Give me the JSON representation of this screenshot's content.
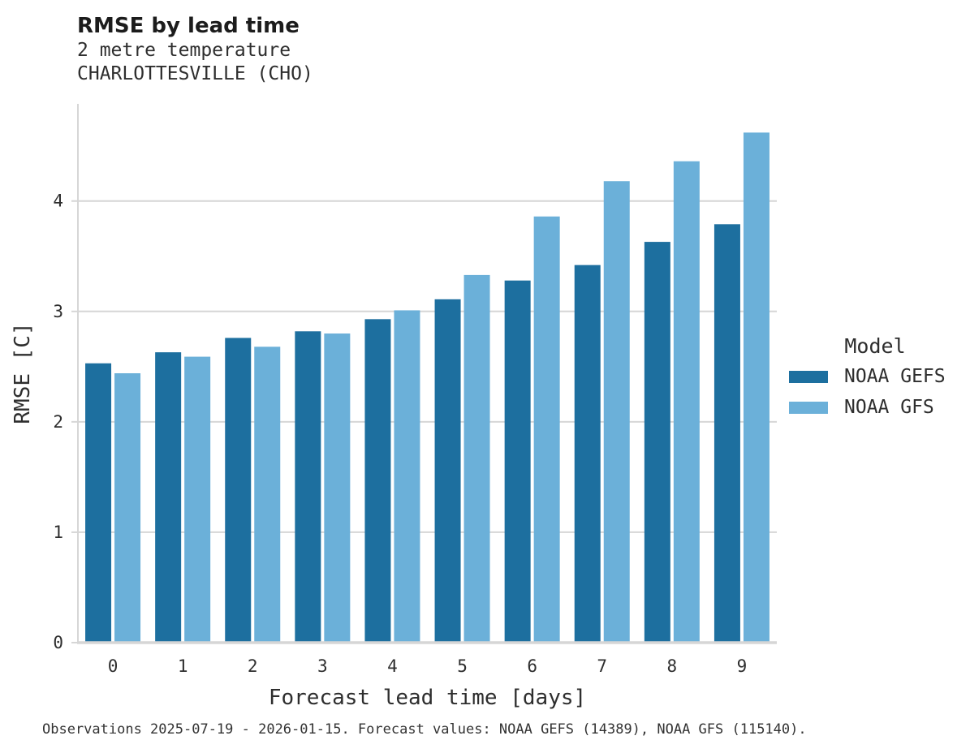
{
  "header": {
    "title": "RMSE by lead time",
    "subtitle_line1": "2 metre temperature",
    "subtitle_line2": "CHARLOTTESVILLE (CHO)"
  },
  "legend": {
    "title": "Model",
    "items": [
      {
        "label": "NOAA GEFS",
        "color": "#1d6f9f"
      },
      {
        "label": "NOAA GFS",
        "color": "#6bb0d9"
      }
    ]
  },
  "footer": {
    "note": "Observations 2025-07-19 - 2026-01-15. Forecast values: NOAA GEFS (14389), NOAA GFS (115140)."
  },
  "chart_data": {
    "type": "bar",
    "title": "RMSE by lead time",
    "subtitle": [
      "2 metre temperature",
      "CHARLOTTESVILLE (CHO)"
    ],
    "xlabel": "Forecast lead time [days]",
    "ylabel": "RMSE [C]",
    "categories": [
      "0",
      "1",
      "2",
      "3",
      "4",
      "5",
      "6",
      "7",
      "8",
      "9"
    ],
    "series": [
      {
        "name": "NOAA GEFS",
        "color": "#1d6f9f",
        "values": [
          2.53,
          2.63,
          2.76,
          2.82,
          2.93,
          3.11,
          3.28,
          3.42,
          3.63,
          3.79
        ]
      },
      {
        "name": "NOAA GFS",
        "color": "#6bb0d9",
        "values": [
          2.44,
          2.59,
          2.68,
          2.8,
          3.01,
          3.33,
          3.86,
          4.18,
          4.36,
          4.62
        ]
      }
    ],
    "yticks": [
      0,
      1,
      2,
      3,
      4
    ],
    "ylim": [
      0,
      4.88
    ],
    "grid": "horizontal",
    "legend_position": "right",
    "legend_title": "Model",
    "colors": {
      "grid": "#d6d6d6",
      "axis": "#d6d6d6",
      "tick_text": "#2e2e2e"
    }
  }
}
